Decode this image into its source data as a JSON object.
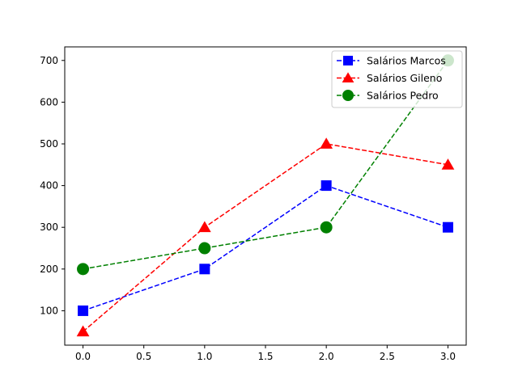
{
  "chart_data": {
    "type": "line",
    "x": [
      0,
      1,
      2,
      3
    ],
    "series": [
      {
        "name": "Salários Marcos",
        "values": [
          100,
          200,
          400,
          300
        ],
        "color": "#0000ff",
        "marker": "square",
        "line_style": "dashed"
      },
      {
        "name": "Salários Gileno",
        "values": [
          50,
          300,
          500,
          450
        ],
        "color": "#ff0000",
        "marker": "triangle",
        "line_style": "dashed"
      },
      {
        "name": "Salários Pedro",
        "values": [
          200,
          250,
          300,
          700
        ],
        "color": "#008000",
        "marker": "circle",
        "line_style": "dashed"
      }
    ],
    "xlim": [
      -0.15,
      3.15
    ],
    "ylim": [
      17.5,
      732.5
    ],
    "x_ticks": [
      0.0,
      0.5,
      1.0,
      1.5,
      2.0,
      2.5,
      3.0
    ],
    "x_tick_labels": [
      "0.0",
      "0.5",
      "1.0",
      "1.5",
      "2.0",
      "2.5",
      "3.0"
    ],
    "y_ticks": [
      100,
      200,
      300,
      400,
      500,
      600,
      700
    ],
    "y_tick_labels": [
      "100",
      "200",
      "300",
      "400",
      "500",
      "600",
      "700"
    ],
    "title": "",
    "xlabel": "",
    "ylabel": "",
    "grid": false,
    "legend_position": "top-right"
  }
}
